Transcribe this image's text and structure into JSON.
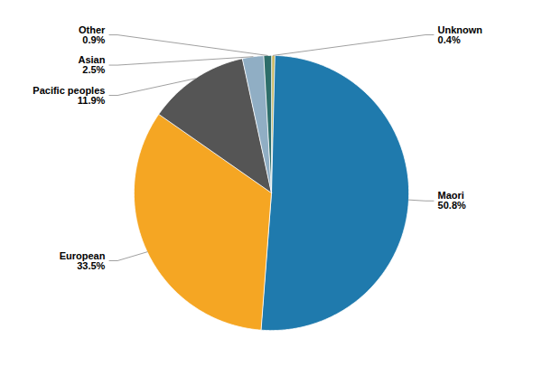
{
  "chart_data": {
    "type": "pie",
    "categories": [
      "Unknown",
      "Maori",
      "European",
      "Pacific peoples",
      "Asian",
      "Other"
    ],
    "values": [
      0.4,
      50.8,
      33.5,
      11.9,
      2.5,
      0.9
    ],
    "value_labels": [
      "0.4%",
      "50.8%",
      "33.5%",
      "11.9%",
      "2.5%",
      "0.9%"
    ],
    "colors": [
      "#c8b45a",
      "#1f7aad",
      "#f5a623",
      "#555555",
      "#90aec4",
      "#2d6e6a"
    ],
    "data_labels": true
  }
}
